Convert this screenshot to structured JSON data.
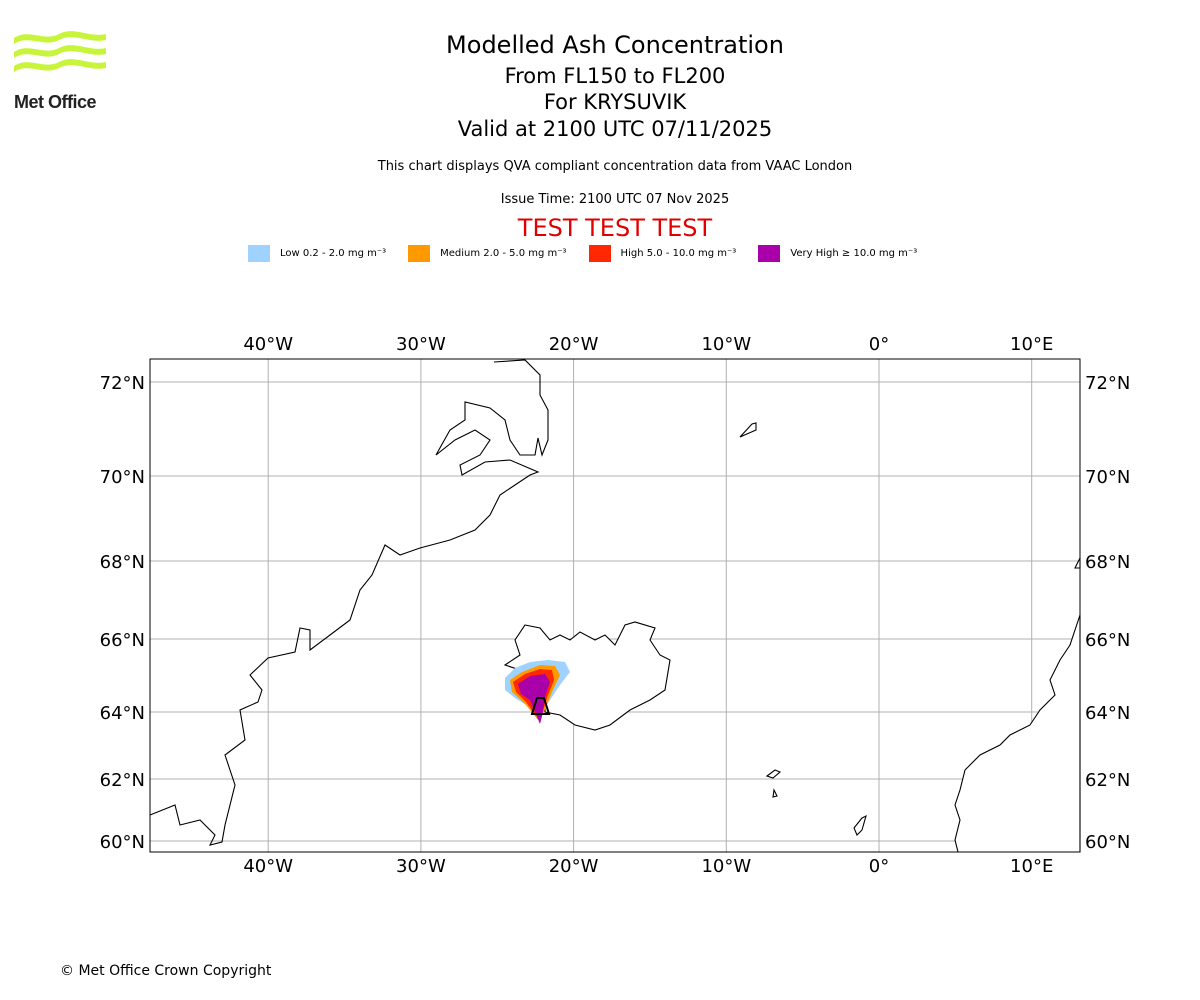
{
  "logo": {
    "text": "Met Office"
  },
  "header": {
    "title": "Modelled Ash Concentration",
    "levels": "From FL150 to FL200",
    "volcano": "For KRYSUVIK",
    "valid": "Valid at 2100 UTC 07/11/2025",
    "description": "This chart displays QVA compliant concentration data from VAAC London",
    "issue": "Issue Time: 2100 UTC 07 Nov 2025",
    "test_banner": "TEST TEST TEST"
  },
  "legend": [
    {
      "label": "Low 0.2 - 2.0 mg m⁻³",
      "color": "#a0d2ff"
    },
    {
      "label": "Medium 2.0 - 5.0 mg m⁻³",
      "color": "#ff9900"
    },
    {
      "label": "High 5.0 - 10.0 mg m⁻³",
      "color": "#ff2800"
    },
    {
      "label": "Very High ≥ 10.0 mg m⁻³",
      "color": "#aa00aa"
    }
  ],
  "map": {
    "lon_ticks": [
      {
        "v": -40,
        "label": "40°W"
      },
      {
        "v": -30,
        "label": "30°W"
      },
      {
        "v": -20,
        "label": "20°W"
      },
      {
        "v": -10,
        "label": "10°W"
      },
      {
        "v": 0,
        "label": "0°"
      },
      {
        "v": 10,
        "label": "10°E"
      }
    ],
    "lat_ticks": [
      {
        "v": 72,
        "label": "72°N"
      },
      {
        "v": 70,
        "label": "70°N"
      },
      {
        "v": 68,
        "label": "68°N"
      },
      {
        "v": 66,
        "label": "66°N"
      },
      {
        "v": 64,
        "label": "64°N"
      },
      {
        "v": 62,
        "label": "62°N"
      },
      {
        "v": 60,
        "label": "60°N"
      }
    ]
  },
  "footer": {
    "copyright": "© Met Office Crown Copyright"
  }
}
